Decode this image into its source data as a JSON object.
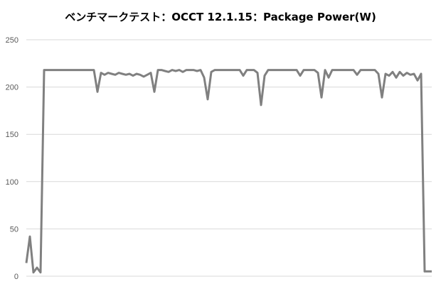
{
  "chart_data": {
    "type": "line",
    "title": "ベンチマークテスト：OCCT 12.1.15：Package Power(W)",
    "xlabel": "",
    "ylabel": "",
    "ylim": [
      0,
      250
    ],
    "yticks": [
      0,
      50,
      100,
      150,
      200,
      250
    ],
    "grid": true,
    "legend": "none",
    "line_color": "#808080",
    "grid_color": "#d9d9d9",
    "series": [
      {
        "values": [
          14,
          42,
          4,
          9,
          4,
          218,
          218,
          218,
          218,
          218,
          218,
          218,
          218,
          218,
          218,
          218,
          218,
          218,
          218,
          218,
          195,
          215,
          213,
          215,
          214,
          213,
          215,
          214,
          213,
          214,
          212,
          214,
          213,
          211,
          213,
          215,
          195,
          218,
          218,
          217,
          216,
          218,
          217,
          218,
          216,
          218,
          218,
          218,
          217,
          218,
          210,
          187,
          216,
          218,
          218,
          218,
          218,
          218,
          218,
          218,
          218,
          212,
          218,
          218,
          218,
          215,
          181,
          212,
          218,
          218,
          218,
          218,
          218,
          218,
          218,
          218,
          218,
          212,
          218,
          218,
          218,
          218,
          215,
          189,
          218,
          210,
          218,
          218,
          218,
          218,
          218,
          218,
          218,
          213,
          218,
          218,
          218,
          218,
          218,
          214,
          189,
          214,
          212,
          216,
          210,
          216,
          212,
          215,
          213,
          214,
          207,
          214,
          5,
          5,
          5
        ]
      }
    ]
  }
}
